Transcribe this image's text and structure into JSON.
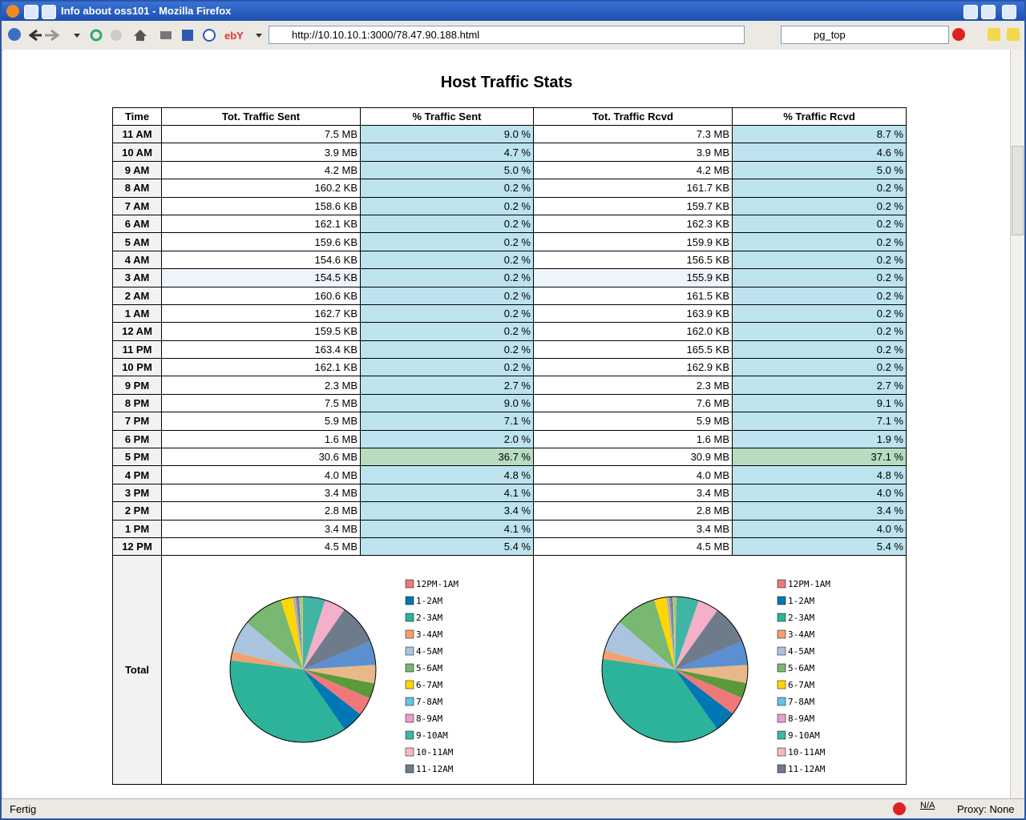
{
  "browser": {
    "window_title": "Info about oss101 - Mozilla Firefox",
    "url": "http://10.10.10.1:3000/78.47.90.188.html",
    "search": "pg_top",
    "status": "Fertig",
    "status_na": "N/A",
    "proxy": "Proxy: None"
  },
  "page": {
    "title": "Host Traffic Stats"
  },
  "table": {
    "header": [
      "Time",
      "Tot. Traffic Sent",
      "% Traffic Sent",
      "Tot. Traffic Rcvd",
      "% Traffic Rcvd"
    ],
    "rows": [
      [
        "11 AM",
        "7.5 MB",
        "9.0 %",
        "7.3 MB",
        "8.7 %"
      ],
      [
        "10 AM",
        "3.9 MB",
        "4.7 %",
        "3.9 MB",
        "4.6 %"
      ],
      [
        "9 AM",
        "4.2 MB",
        "5.0 %",
        "4.2 MB",
        "5.0 %"
      ],
      [
        "8 AM",
        "160.2 KB",
        "0.2 %",
        "161.7 KB",
        "0.2 %"
      ],
      [
        "7 AM",
        "158.6 KB",
        "0.2 %",
        "159.7 KB",
        "0.2 %"
      ],
      [
        "6 AM",
        "162.1 KB",
        "0.2 %",
        "162.3 KB",
        "0.2 %"
      ],
      [
        "5 AM",
        "159.6 KB",
        "0.2 %",
        "159.9 KB",
        "0.2 %"
      ],
      [
        "4 AM",
        "154.6 KB",
        "0.2 %",
        "156.5 KB",
        "0.2 %"
      ],
      [
        "3 AM",
        "154.5 KB",
        "0.2 %",
        "155.9 KB",
        "0.2 %"
      ],
      [
        "2 AM",
        "160.6 KB",
        "0.2 %",
        "161.5 KB",
        "0.2 %"
      ],
      [
        "1 AM",
        "162.7 KB",
        "0.2 %",
        "163.9 KB",
        "0.2 %"
      ],
      [
        "12 AM",
        "159.5 KB",
        "0.2 %",
        "162.0 KB",
        "0.2 %"
      ],
      [
        "11 PM",
        "163.4 KB",
        "0.2 %",
        "165.5 KB",
        "0.2 %"
      ],
      [
        "10 PM",
        "162.1 KB",
        "0.2 %",
        "162.9 KB",
        "0.2 %"
      ],
      [
        "9 PM",
        "2.3 MB",
        "2.7 %",
        "2.3 MB",
        "2.7 %"
      ],
      [
        "8 PM",
        "7.5 MB",
        "9.0 %",
        "7.6 MB",
        "9.1 %"
      ],
      [
        "7 PM",
        "5.9 MB",
        "7.1 %",
        "5.9 MB",
        "7.1 %"
      ],
      [
        "6 PM",
        "1.6 MB",
        "2.0 %",
        "1.6 MB",
        "1.9 %"
      ],
      [
        "5 PM",
        "30.6 MB",
        "36.7 %",
        "30.9 MB",
        "37.1 %"
      ],
      [
        "4 PM",
        "4.0 MB",
        "4.8 %",
        "4.0 MB",
        "4.8 %"
      ],
      [
        "3 PM",
        "3.4 MB",
        "4.1 %",
        "3.4 MB",
        "4.0 %"
      ],
      [
        "2 PM",
        "2.8 MB",
        "3.4 %",
        "2.8 MB",
        "3.4 %"
      ],
      [
        "1 PM",
        "3.4 MB",
        "4.1 %",
        "3.4 MB",
        "4.0 %"
      ],
      [
        "12 PM",
        "4.5 MB",
        "5.4 %",
        "4.5 MB",
        "5.4 %"
      ]
    ],
    "total_label": "Total"
  },
  "chart_data": [
    {
      "type": "pie",
      "values": [
        5.4,
        4.1,
        3.4,
        4.1,
        4.8,
        36.7,
        2.0,
        7.1,
        9.0,
        2.7,
        0.2,
        0.2,
        0.2,
        0.2,
        0.2,
        0.2,
        0.2,
        0.2,
        0.2,
        0.2,
        0.2,
        5.0,
        4.7,
        9.0
      ],
      "colors": [
        "#5b8fd0",
        "#e8b888",
        "#5a9a3a",
        "#f07878",
        "#0077b5",
        "#2db39a",
        "#f5a070",
        "#aac4e0",
        "#78b870",
        "#ffd700",
        "#e8a0c8",
        "#40b5a5",
        "#f4b8c8",
        "#6e7b8b",
        "#f07878",
        "#0077b5",
        "#2db39a",
        "#f5a070",
        "#aac4e0",
        "#78b870",
        "#ffd700",
        "#40b5a5",
        "#f4b0c8",
        "#6e7b8b"
      ],
      "legend_labels": [
        "12PM-1AM",
        "1-2AM",
        "2-3AM",
        "3-4AM",
        "4-5AM",
        "5-6AM",
        "6-7AM",
        "7-8AM",
        "8-9AM",
        "9-10AM",
        "10-11AM",
        "11-12AM"
      ],
      "legend_colors": [
        "#f07878",
        "#0077b5",
        "#2db39a",
        "#f5a070",
        "#aac4e0",
        "#78b870",
        "#ffd700",
        "#66c2e8",
        "#e8a0c8",
        "#40b5a5",
        "#f4b8c8",
        "#6e7b8b"
      ]
    },
    {
      "type": "pie",
      "values": [
        5.4,
        4.0,
        3.4,
        4.0,
        4.8,
        37.1,
        1.9,
        7.1,
        9.1,
        2.7,
        0.2,
        0.2,
        0.2,
        0.2,
        0.2,
        0.2,
        0.2,
        0.2,
        0.2,
        0.2,
        0.2,
        5.0,
        4.6,
        8.7
      ],
      "colors": [
        "#5b8fd0",
        "#e8b888",
        "#5a9a3a",
        "#f07878",
        "#0077b5",
        "#2db39a",
        "#f5a070",
        "#aac4e0",
        "#78b870",
        "#ffd700",
        "#e8a0c8",
        "#40b5a5",
        "#f4b8c8",
        "#6e7b8b",
        "#f07878",
        "#0077b5",
        "#2db39a",
        "#f5a070",
        "#aac4e0",
        "#78b870",
        "#ffd700",
        "#40b5a5",
        "#f4b0c8",
        "#6e7b8b"
      ],
      "legend_labels": [
        "12PM-1AM",
        "1-2AM",
        "2-3AM",
        "3-4AM",
        "4-5AM",
        "5-6AM",
        "6-7AM",
        "7-8AM",
        "8-9AM",
        "9-10AM",
        "10-11AM",
        "11-12AM"
      ],
      "legend_colors": [
        "#f07878",
        "#0077b5",
        "#2db39a",
        "#f5a070",
        "#aac4e0",
        "#78b870",
        "#ffd700",
        "#66c2e8",
        "#e8a0c8",
        "#40b5a5",
        "#f4b8c8",
        "#6e7b8b"
      ]
    }
  ]
}
